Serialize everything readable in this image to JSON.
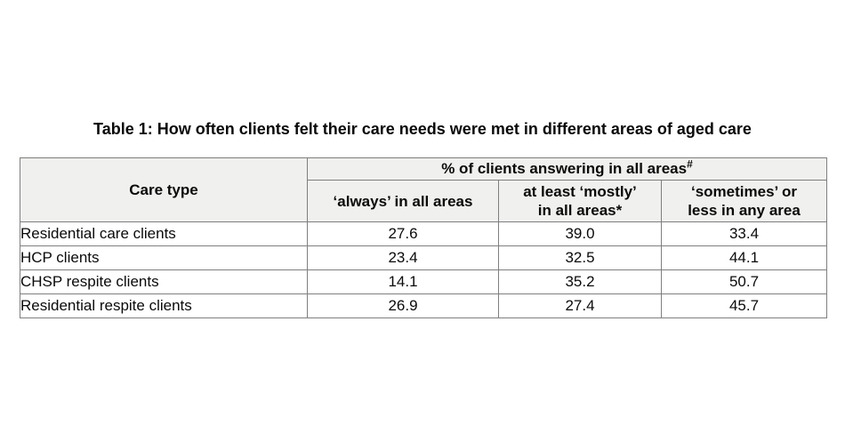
{
  "title": "Table 1: How often clients felt their care needs were met in different areas of aged care",
  "table": {
    "corner_header": "Care type",
    "span_header": {
      "text": "% of clients answering in all areas",
      "sup": "#"
    },
    "col_headers": [
      {
        "line1": "‘always’ in all areas",
        "line2": ""
      },
      {
        "line1": "at least ‘mostly’",
        "line2": "in all areas*"
      },
      {
        "line1": "‘sometimes’ or",
        "line2": "less in any area"
      }
    ],
    "rows": [
      {
        "label": "Residential care clients",
        "values": [
          "27.6",
          "39.0",
          "33.4"
        ]
      },
      {
        "label": "HCP clients",
        "values": [
          "23.4",
          "32.5",
          "44.1"
        ]
      },
      {
        "label": "CHSP respite clients",
        "values": [
          "14.1",
          "35.2",
          "50.7"
        ]
      },
      {
        "label": "Residential respite clients",
        "values": [
          "26.9",
          "27.4",
          "45.7"
        ]
      }
    ],
    "colors": {
      "header_bg": "#f0f0ee",
      "border": "#7f7f7f",
      "text": "#0a0a0a",
      "page_bg": "#ffffff"
    }
  },
  "chart_data": {
    "type": "table",
    "title": "Table 1: How often clients felt their care needs were met in different areas of aged care",
    "columns": [
      "Care type",
      "‘always’ in all areas",
      "at least ‘mostly’ in all areas*",
      "‘sometimes’ or less in any area"
    ],
    "group_header": "% of clients answering in all areas#",
    "rows": [
      [
        "Residential care clients",
        27.6,
        39.0,
        33.4
      ],
      [
        "HCP clients",
        23.4,
        32.5,
        44.1
      ],
      [
        "CHSP respite clients",
        14.1,
        35.2,
        50.7
      ],
      [
        "Residential respite clients",
        26.9,
        27.4,
        45.7
      ]
    ]
  }
}
